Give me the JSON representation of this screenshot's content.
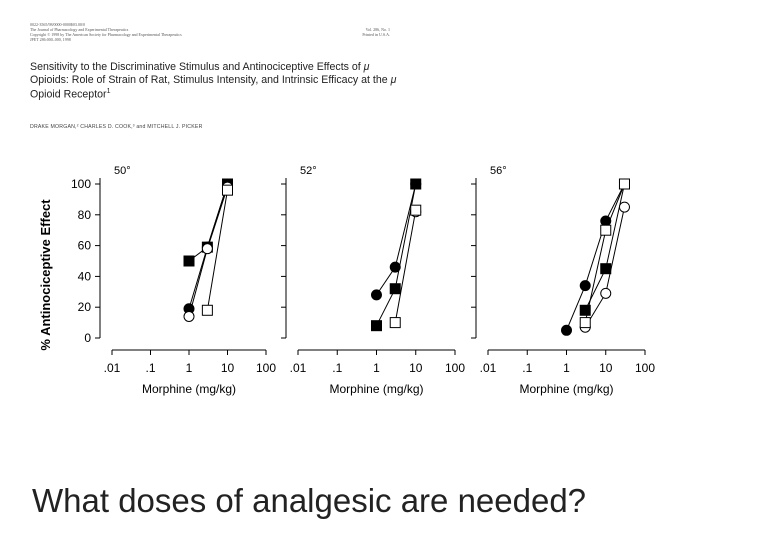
{
  "header": {
    "journal_lines": [
      "0022-3565/98/0000-0000$03.00/0",
      "The Journal of Pharmacology and Experimental Therapeutics",
      "Copyright © 1998 by The American Society for Pharmacology and Experimental Therapeutics",
      "JPET 286:000–000, 1998"
    ],
    "volume": "Vol. 286, No. 1",
    "printed": "Printed in U.S.A.",
    "title_parts": [
      "Sensitivity to the Discriminative Stimulus and Antinociceptive Effects of ",
      "μ",
      " Opioids: Role of Strain of Rat, Stimulus Intensity, and Intrinsic Efficacy at the ",
      "μ",
      " Opioid Receptor",
      "1"
    ],
    "authors": "DRAKE MORGAN,² CHARLES D. COOK,³ and MITCHELL J. PICKER"
  },
  "chart_data": [
    {
      "type": "scatter",
      "title": "50°",
      "xlabel": "Morphine (mg/kg)",
      "ylabel": "% Antinociceptive Effect",
      "xscale": "log",
      "xticks": [
        ".01",
        ".1",
        "1",
        "10",
        "100"
      ],
      "yticks": [
        "0",
        "20",
        "40",
        "60",
        "80",
        "100"
      ],
      "xlim": [
        0.01,
        100
      ],
      "ylim": [
        0,
        100
      ],
      "series": [
        {
          "marker": "filled-circle",
          "x": [
            1,
            3,
            10
          ],
          "y": [
            19,
            59,
            100
          ]
        },
        {
          "marker": "filled-square",
          "x": [
            1,
            3,
            10
          ],
          "y": [
            50,
            59,
            100
          ]
        },
        {
          "marker": "open-circle",
          "x": [
            1,
            3,
            10
          ],
          "y": [
            14,
            58,
            98
          ]
        },
        {
          "marker": "open-square",
          "x": [
            3,
            10
          ],
          "y": [
            18,
            96
          ]
        }
      ]
    },
    {
      "type": "scatter",
      "title": "52°",
      "xlabel": "Morphine (mg/kg)",
      "ylabel": "",
      "xscale": "log",
      "xticks": [
        ".01",
        ".1",
        "1",
        "10",
        "100"
      ],
      "xlim": [
        0.01,
        100
      ],
      "ylim": [
        0,
        100
      ],
      "series": [
        {
          "marker": "filled-circle",
          "x": [
            1,
            3,
            10
          ],
          "y": [
            28,
            46,
            100
          ]
        },
        {
          "marker": "filled-square",
          "x": [
            1,
            3,
            10
          ],
          "y": [
            8,
            32,
            100
          ]
        },
        {
          "marker": "open-circle",
          "x": [
            10
          ],
          "y": [
            82
          ]
        },
        {
          "marker": "open-square",
          "x": [
            3,
            10
          ],
          "y": [
            10,
            83
          ]
        }
      ]
    },
    {
      "type": "scatter",
      "title": "56°",
      "xlabel": "Morphine (mg/kg)",
      "ylabel": "",
      "xscale": "log",
      "xticks": [
        ".01",
        ".1",
        "1",
        "10",
        "100"
      ],
      "xlim": [
        0.01,
        100
      ],
      "ylim": [
        0,
        100
      ],
      "series": [
        {
          "marker": "filled-circle",
          "x": [
            1,
            3,
            10,
            30
          ],
          "y": [
            5,
            34,
            76,
            100
          ]
        },
        {
          "marker": "filled-square",
          "x": [
            3,
            10,
            30
          ],
          "y": [
            18,
            45,
            100
          ]
        },
        {
          "marker": "open-circle",
          "x": [
            3,
            10,
            30
          ],
          "y": [
            7,
            29,
            85
          ]
        },
        {
          "marker": "open-square",
          "x": [
            3,
            10,
            30
          ],
          "y": [
            10,
            70,
            100
          ]
        }
      ]
    }
  ],
  "question": "What doses of analgesic are needed?"
}
